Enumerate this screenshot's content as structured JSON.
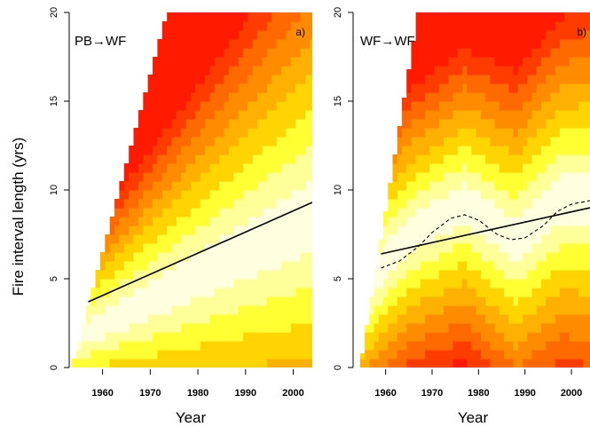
{
  "chart_data": [
    {
      "type": "heatmap",
      "panel_label": "a)",
      "title": "PB→WF",
      "xlabel": "Year",
      "ylabel": "Fire interval length (yrs)",
      "xlim": [
        1953,
        2004
      ],
      "ylim": [
        0,
        20
      ],
      "x_ticks": [
        1960,
        1970,
        1980,
        1990,
        2000
      ],
      "y_ticks": [
        0,
        5,
        10,
        15,
        20
      ],
      "colors": {
        "scale": [
          "#ffffe0",
          "#ffff99",
          "#ffff33",
          "#ffd400",
          "#ffb000",
          "#ff8c00",
          "#ff6a00",
          "#ff3c00",
          "#ff1a00"
        ],
        "line": "#000000"
      },
      "density": {
        "first_year": 1953.5,
        "max_interval_by_year": "year - 1953.5",
        "center_interval": {
          "x": [
            1953,
            2004
          ],
          "y": [
            1.5,
            8.5
          ]
        },
        "spread": {
          "x": [
            1953,
            2004
          ],
          "y": [
            1.2,
            4.2
          ]
        }
      },
      "series": [
        {
          "style": "solid",
          "x": [
            1957,
            2004
          ],
          "y": [
            3.7,
            9.3
          ]
        }
      ]
    },
    {
      "type": "heatmap",
      "panel_label": "b)",
      "title": "WF→WF",
      "xlabel": "Year",
      "ylabel": "",
      "xlim": [
        1953,
        2004
      ],
      "ylim": [
        0,
        20
      ],
      "x_ticks": [
        1960,
        1970,
        1980,
        1990,
        2000
      ],
      "y_ticks": [
        0,
        5,
        10,
        15,
        20
      ],
      "colors": {
        "scale": [
          "#ffffe0",
          "#ffff99",
          "#ffff33",
          "#ffd400",
          "#ffb000",
          "#ff8c00",
          "#ff6a00",
          "#ff3c00",
          "#ff1a00"
        ],
        "line": "#000000"
      },
      "density": {
        "first_year": 1954.5,
        "max_interval_by_year": "1.6 * (year - 1954.5)",
        "center_interval": {
          "x": [
            1955,
            1965,
            1977,
            1988,
            1998,
            2004
          ],
          "y": [
            4.5,
            7.5,
            9.2,
            7.2,
            9.5,
            9.5
          ]
        },
        "spread": {
          "x": [
            1955,
            1977,
            1988,
            2004
          ],
          "y": [
            2.0,
            2.3,
            2.5,
            2.8
          ]
        }
      },
      "series": [
        {
          "style": "solid",
          "x": [
            1959,
            2004
          ],
          "y": [
            6.4,
            9.0
          ]
        },
        {
          "style": "dashed",
          "x": [
            1959,
            1963,
            1967,
            1970,
            1974,
            1977,
            1980,
            1984,
            1987,
            1990,
            1994,
            1997,
            2000,
            2004
          ],
          "y": [
            5.6,
            6.0,
            6.8,
            7.6,
            8.4,
            8.6,
            8.3,
            7.5,
            7.2,
            7.3,
            8.0,
            8.8,
            9.2,
            9.4
          ]
        }
      ]
    }
  ]
}
